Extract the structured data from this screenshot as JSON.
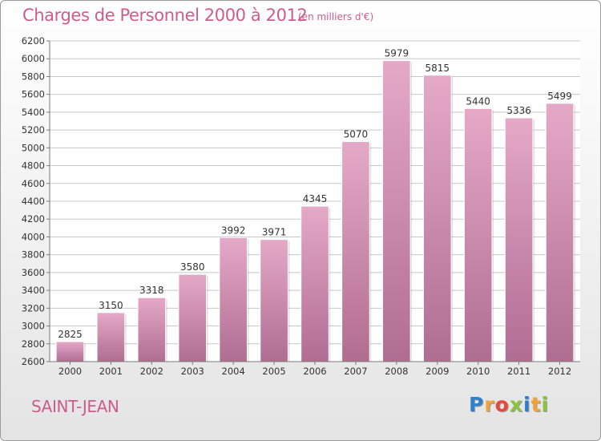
{
  "header": {
    "title": "Charges de Personnel 2000 à 2012",
    "unit": "(en milliers d'€)"
  },
  "footer": {
    "commune": "SAINT-JEAN",
    "logo_letters": [
      "P",
      "r",
      "o",
      "x",
      "i",
      "t",
      "i"
    ],
    "logo_colors": [
      "#2f7fd0",
      "#f1a33a",
      "#e8483c",
      "#8bc33c",
      "#2f7fd0",
      "#f1a33a",
      "#8bc33c"
    ]
  },
  "colors": {
    "bar_top": "#e5a9c8",
    "bar_bottom": "#b06d92",
    "text": "#cc5c8c",
    "grid": "#c8c8c8"
  },
  "chart_data": {
    "type": "bar",
    "categories": [
      "2000",
      "2001",
      "2002",
      "2003",
      "2004",
      "2005",
      "2006",
      "2007",
      "2008",
      "2009",
      "2010",
      "2011",
      "2012"
    ],
    "values": [
      2825,
      3150,
      3318,
      3580,
      3992,
      3971,
      4345,
      5070,
      5979,
      5815,
      5440,
      5336,
      5499
    ],
    "ylim": [
      2600,
      6200
    ],
    "yticks": [
      2600,
      2800,
      3000,
      3200,
      3400,
      3600,
      3800,
      4000,
      4200,
      4400,
      4600,
      4800,
      5000,
      5200,
      5400,
      5600,
      5800,
      6000,
      6200
    ],
    "grid": true,
    "data_labels": true
  }
}
